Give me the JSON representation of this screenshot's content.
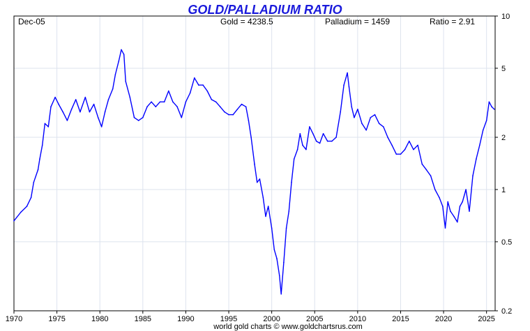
{
  "chart_data": {
    "type": "line",
    "title": "GOLD/PALLADIUM RATIO",
    "header": {
      "date": "Dec-05",
      "gold": "Gold = 4238.5",
      "palladium": "Palladium = 1459",
      "ratio": "Ratio = 2.91"
    },
    "footer": "world gold charts © www.goldchartsrus.com",
    "xlabel": "",
    "ylabel": "",
    "y_scale": "log",
    "xlim": [
      1970,
      2026
    ],
    "ylim": [
      0.2,
      10
    ],
    "x_ticks": [
      "1970",
      "1975",
      "1980",
      "1985",
      "1990",
      "1995",
      "2000",
      "2005",
      "2010",
      "2015",
      "2020",
      "2025"
    ],
    "y_ticks": [
      "10",
      "5",
      "2",
      "1",
      "0.5",
      "0.2"
    ],
    "grid": true,
    "line_color": "#0000ff",
    "series": [
      {
        "name": "",
        "x": [
          1970.0,
          1970.8,
          1971.5,
          1972.0,
          1972.3,
          1972.8,
          1973.0,
          1973.3,
          1973.6,
          1974.0,
          1974.3,
          1974.8,
          1975.2,
          1975.7,
          1976.2,
          1976.7,
          1977.2,
          1977.7,
          1978.3,
          1978.8,
          1979.3,
          1979.8,
          1980.2,
          1980.6,
          1981.0,
          1981.5,
          1981.8,
          1982.2,
          1982.5,
          1982.8,
          1983.0,
          1983.5,
          1984.0,
          1984.5,
          1985.0,
          1985.5,
          1986.0,
          1986.5,
          1987.0,
          1987.5,
          1988.0,
          1988.5,
          1989.0,
          1989.5,
          1990.0,
          1990.5,
          1991.0,
          1991.5,
          1992.0,
          1992.5,
          1993.0,
          1993.5,
          1994.0,
          1994.5,
          1995.0,
          1995.5,
          1996.0,
          1996.5,
          1997.0,
          1997.3,
          1997.6,
          1998.0,
          1998.3,
          1998.6,
          1999.0,
          1999.3,
          1999.6,
          2000.0,
          2000.3,
          2000.6,
          2000.9,
          2001.1,
          2001.4,
          2001.7,
          2002.0,
          2002.3,
          2002.6,
          2003.0,
          2003.3,
          2003.6,
          2004.0,
          2004.4,
          2004.8,
          2005.2,
          2005.6,
          2006.0,
          2006.5,
          2007.0,
          2007.5,
          2008.0,
          2008.4,
          2008.8,
          2009.0,
          2009.3,
          2009.6,
          2010.0,
          2010.5,
          2011.0,
          2011.5,
          2012.0,
          2012.5,
          2013.0,
          2013.5,
          2014.0,
          2014.5,
          2015.0,
          2015.5,
          2016.0,
          2016.5,
          2017.0,
          2017.5,
          2018.0,
          2018.5,
          2019.0,
          2019.5,
          2019.9,
          2020.2,
          2020.5,
          2020.8,
          2021.2,
          2021.6,
          2021.9,
          2022.2,
          2022.6,
          2023.0,
          2023.4,
          2023.8,
          2024.2,
          2024.6,
          2025.0,
          2025.3,
          2025.6,
          2025.9
        ],
        "values": [
          0.66,
          0.74,
          0.8,
          0.9,
          1.1,
          1.3,
          1.5,
          1.8,
          2.4,
          2.3,
          3.0,
          3.4,
          3.1,
          2.8,
          2.5,
          2.9,
          3.3,
          2.8,
          3.4,
          2.8,
          3.1,
          2.6,
          2.3,
          2.8,
          3.3,
          3.8,
          4.6,
          5.5,
          6.4,
          6.0,
          4.2,
          3.4,
          2.6,
          2.5,
          2.6,
          3.0,
          3.2,
          3.0,
          3.2,
          3.2,
          3.7,
          3.2,
          3.0,
          2.6,
          3.2,
          3.6,
          4.4,
          4.0,
          4.0,
          3.7,
          3.3,
          3.2,
          3.0,
          2.8,
          2.7,
          2.7,
          2.9,
          3.1,
          3.0,
          2.5,
          2.0,
          1.4,
          1.1,
          1.15,
          0.9,
          0.7,
          0.8,
          0.6,
          0.45,
          0.4,
          0.32,
          0.25,
          0.38,
          0.6,
          0.75,
          1.1,
          1.5,
          1.7,
          2.1,
          1.8,
          1.7,
          2.3,
          2.1,
          1.9,
          1.85,
          2.1,
          1.9,
          1.9,
          2.0,
          2.8,
          4.0,
          4.7,
          3.9,
          3.0,
          2.6,
          2.9,
          2.4,
          2.2,
          2.6,
          2.7,
          2.4,
          2.3,
          2.0,
          1.8,
          1.6,
          1.6,
          1.7,
          1.9,
          1.7,
          1.8,
          1.4,
          1.3,
          1.2,
          1.0,
          0.9,
          0.8,
          0.6,
          0.85,
          0.75,
          0.7,
          0.65,
          0.8,
          0.85,
          1.0,
          0.75,
          1.2,
          1.5,
          1.8,
          2.2,
          2.5,
          3.2,
          3.0,
          2.9
        ]
      }
    ]
  }
}
